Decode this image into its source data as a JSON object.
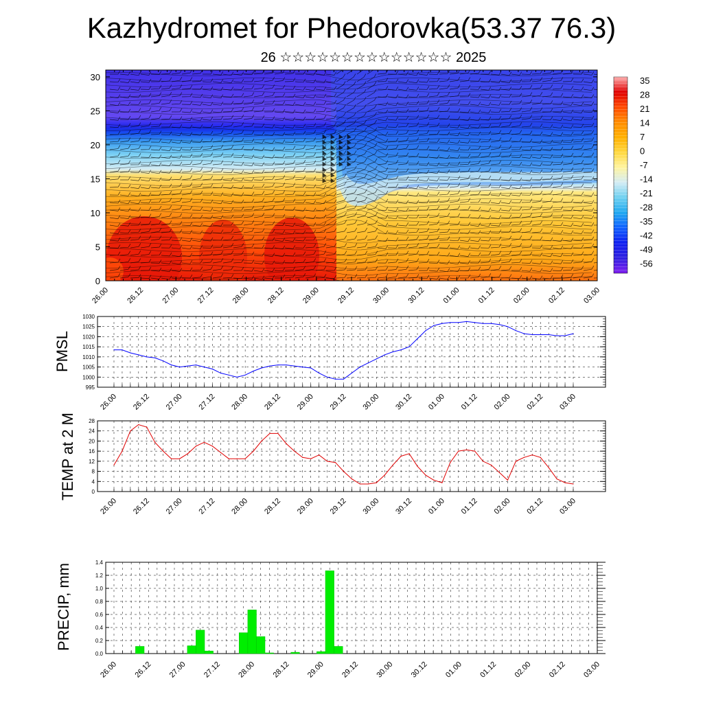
{
  "header": {
    "title": "Kazhydromet for Phedorovka(53.37 76.3)",
    "subtitle": "26 ☆☆☆☆☆☆☆☆☆☆☆☆☆☆ 2025"
  },
  "time_labels": [
    "26.00",
    "26.12",
    "27.00",
    "27.12",
    "28.00",
    "28.12",
    "29.00",
    "29.12",
    "30.00",
    "30.12",
    "01.00",
    "01.12",
    "02.00",
    "02.12",
    "03.00"
  ],
  "chart_data": [
    {
      "type": "heatmap",
      "name": "vertical-cross-section",
      "y_ticks": [
        0,
        5,
        10,
        15,
        20,
        25,
        30
      ],
      "ylim": [
        0,
        31
      ],
      "x_categories": [
        "26.00",
        "26.12",
        "27.00",
        "27.12",
        "28.00",
        "28.12",
        "29.00",
        "29.12",
        "30.00",
        "30.12",
        "01.00",
        "01.12",
        "02.00",
        "02.12",
        "03.00"
      ],
      "colorbar": {
        "labels": [
          "35",
          "28",
          "21",
          "14",
          "7",
          "0",
          "-7",
          "-14",
          "-21",
          "-28",
          "-35",
          "-42",
          "-49",
          "-56"
        ],
        "colors": [
          "#ffb0b0",
          "#e00000",
          "#ff4a00",
          "#ff8c00",
          "#ffb000",
          "#ffd840",
          "#fff4a0",
          "#d4ecf4",
          "#6ed0f0",
          "#20a8f0",
          "#1060ff",
          "#1020f0",
          "#3020e0",
          "#8020f0"
        ]
      },
      "colors": {
        "upper": "#3a2ce8",
        "tropopause": "#1e30e0",
        "mid_cold": "#40b0f0",
        "boundary": "#e8ecf0",
        "warm_low": "#ffb820",
        "hot_low": "#e81808"
      }
    },
    {
      "type": "line",
      "name": "pmsl",
      "ylabel": "PMSL",
      "y_ticks": [
        995,
        1000,
        1005,
        1010,
        1015,
        1020,
        1025,
        1030
      ],
      "ylim": [
        995,
        1030
      ],
      "color": "#0000ff",
      "x": [
        0,
        3,
        6,
        9,
        12,
        15,
        18,
        21,
        24,
        27,
        30,
        33,
        36,
        39,
        42,
        45,
        48,
        51,
        54,
        57,
        60,
        63,
        66,
        69,
        72,
        75,
        78,
        81,
        84,
        87,
        90,
        93,
        96,
        99,
        102,
        105,
        108,
        111,
        114,
        117,
        120,
        123,
        126,
        129,
        132,
        135,
        138,
        141,
        144,
        147,
        150,
        153,
        156,
        159,
        162,
        165,
        168
      ],
      "values": [
        1013.5,
        1013.5,
        1012,
        1011,
        1010,
        1009.5,
        1008,
        1006,
        1005,
        1005.5,
        1006,
        1005,
        1004,
        1002,
        1001,
        1000,
        1001,
        1003,
        1004.5,
        1005.5,
        1006,
        1006,
        1005.5,
        1005,
        1004.5,
        1002,
        1000,
        999,
        999,
        1002,
        1005,
        1007,
        1009,
        1011,
        1012.5,
        1013.5,
        1015,
        1019,
        1023,
        1025.5,
        1026.5,
        1027,
        1027,
        1027.5,
        1027,
        1026.5,
        1026.5,
        1026,
        1025,
        1023,
        1021.5,
        1021,
        1021,
        1021,
        1020.5,
        1020.5,
        1021.5
      ]
    },
    {
      "type": "line",
      "name": "temp-2m",
      "ylabel": "TEMP at 2 M",
      "y_ticks": [
        0,
        4,
        8,
        12,
        16,
        20,
        24,
        28
      ],
      "ylim": [
        0,
        28
      ],
      "color": "#e00000",
      "x": [
        0,
        3,
        6,
        9,
        12,
        15,
        18,
        21,
        24,
        27,
        30,
        33,
        36,
        39,
        42,
        45,
        48,
        51,
        54,
        57,
        60,
        63,
        66,
        69,
        72,
        75,
        78,
        81,
        84,
        87,
        90,
        93,
        96,
        99,
        102,
        105,
        108,
        111,
        114,
        117,
        120,
        123,
        126,
        129,
        132,
        135,
        138,
        141,
        144,
        147,
        150,
        153,
        156,
        159,
        162,
        165,
        168
      ],
      "values": [
        10.5,
        16,
        24,
        26.5,
        25.5,
        19.5,
        16,
        13,
        13,
        15,
        18,
        19.5,
        18,
        15.5,
        13,
        13,
        13,
        16,
        20,
        23,
        23,
        19,
        16,
        13.5,
        13,
        14.5,
        12,
        11.5,
        8,
        5,
        3,
        3,
        3.5,
        6.5,
        10.5,
        14,
        15,
        10,
        6.5,
        4.5,
        3.5,
        11.5,
        16,
        16.5,
        16,
        12,
        10.5,
        7.5,
        4.5,
        12,
        13.5,
        14.5,
        13.5,
        9.5,
        5,
        3.5,
        3
      ]
    },
    {
      "type": "bar",
      "name": "precip",
      "ylabel": "PRECIP, mm",
      "y_ticks": [
        0.0,
        0.2,
        0.4,
        0.6,
        0.8,
        1.0,
        1.2,
        1.4
      ],
      "y_tick_labels": [
        "0.0",
        "0.2",
        "0.4",
        "0.6",
        "0.8",
        "1.0",
        "1.2",
        "1.4"
      ],
      "ylim": [
        0,
        1.4
      ],
      "color": "#00ee00",
      "x": [
        9,
        12,
        15,
        18,
        21,
        24,
        27,
        30,
        33,
        36,
        39,
        42,
        45,
        48,
        51,
        54,
        57,
        60,
        63,
        66,
        69,
        72,
        75,
        78,
        81,
        84,
        87,
        90,
        93,
        96
      ],
      "values": [
        0.11,
        0,
        0,
        0,
        0,
        0,
        0.12,
        0.36,
        0.04,
        0,
        0,
        0,
        0.32,
        0.67,
        0.26,
        0.01,
        0,
        0,
        0.02,
        0,
        0,
        0.03,
        1.27,
        0.11,
        0,
        0,
        0,
        0,
        0,
        0
      ]
    }
  ]
}
